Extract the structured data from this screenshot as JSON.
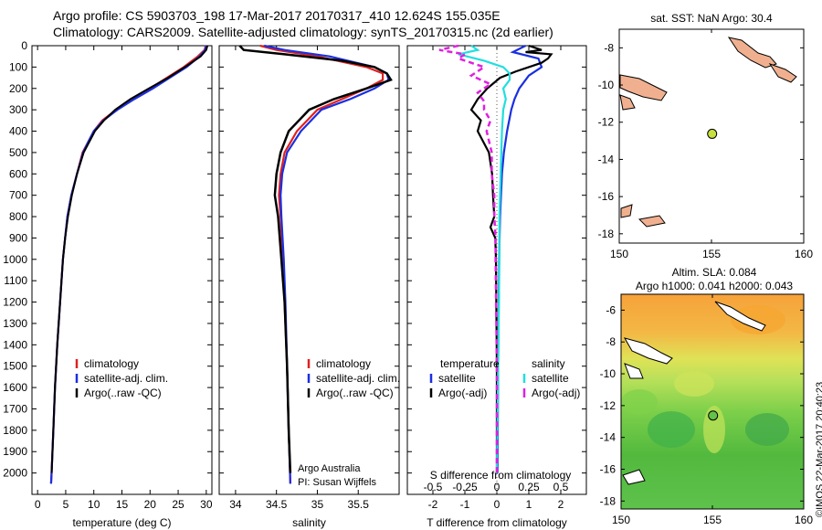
{
  "header": {
    "line1": "Argo profile: CS 5903703_198 17-Mar-2017 20170317_410 12.624S 155.035E",
    "line2": "Climatology: CARS2009. Satellite-adjusted climatology: synTS_20170315.nc (2d earlier)"
  },
  "side_text": "©IMOS 22-Mar-2017 20:40:23",
  "colors": {
    "climatology": "#e02020",
    "satellite": "#1a2fe0",
    "argo": "#000000",
    "sat_salinity": "#22dede",
    "argo_salinity": "#e020e0",
    "land": "#f0b090"
  },
  "chart_data": [
    {
      "type": "line",
      "xlabel": "temperature (deg C)",
      "ylabel": "",
      "xlim": [
        -1,
        31
      ],
      "ylim": [
        2100,
        0
      ],
      "xticks": [
        "0",
        "5",
        "10",
        "15",
        "20",
        "25",
        "30"
      ],
      "yticks": [
        "0",
        "100",
        "200",
        "300",
        "400",
        "500",
        "600",
        "700",
        "800",
        "900",
        "1000",
        "1100",
        "1200",
        "1300",
        "1400",
        "1500",
        "1600",
        "1700",
        "1800",
        "1900",
        "2000"
      ],
      "legend": [
        "climatology",
        "satellite-adj. clim.",
        "Argo(..raw -QC)"
      ],
      "series": [
        {
          "name": "climatology",
          "depth": [
            0,
            20,
            50,
            100,
            150,
            200,
            250,
            300,
            350,
            400,
            450,
            500,
            600,
            700,
            800,
            900,
            1000,
            1200,
            1400,
            1600,
            1800,
            2000,
            2050
          ],
          "values": [
            29.9,
            29.7,
            28.5,
            26.0,
            23.0,
            20.0,
            17.0,
            14.0,
            11.5,
            10.0,
            9.0,
            8.0,
            7.0,
            6.0,
            5.3,
            4.9,
            4.5,
            4.0,
            3.5,
            3.1,
            2.8,
            2.5,
            2.4
          ]
        },
        {
          "name": "satellite-adj. clim.",
          "depth": [
            0,
            20,
            50,
            100,
            150,
            200,
            250,
            300,
            350,
            400,
            450,
            500,
            600,
            700,
            800,
            900,
            1000,
            1200,
            1400,
            1600,
            1800,
            2000,
            2050
          ],
          "values": [
            30.0,
            29.8,
            28.8,
            26.5,
            23.5,
            20.5,
            17.2,
            14.2,
            11.7,
            10.0,
            9.0,
            8.1,
            7.0,
            6.0,
            5.3,
            4.9,
            4.5,
            4.0,
            3.5,
            3.1,
            2.8,
            2.5,
            2.4
          ]
        },
        {
          "name": "Argo(..raw -QC)",
          "depth": [
            0,
            20,
            50,
            100,
            150,
            200,
            250,
            300,
            350,
            400,
            450,
            500,
            600,
            700,
            800,
            900,
            1000,
            1200,
            1400,
            1600,
            1800,
            2000
          ],
          "values": [
            30.2,
            30.0,
            29.0,
            26.2,
            23.2,
            19.8,
            16.5,
            13.8,
            11.8,
            10.2,
            9.2,
            8.2,
            7.0,
            6.1,
            5.4,
            4.9,
            4.5,
            4.0,
            3.5,
            3.1,
            2.8,
            2.5
          ]
        }
      ]
    },
    {
      "type": "line",
      "xlabel": "salinity",
      "xlim": [
        33.8,
        36.0
      ],
      "ylim": [
        2100,
        0
      ],
      "xticks": [
        "34",
        "34.5",
        "35",
        "35.5"
      ],
      "legend": [
        "climatology",
        "satellite-adj. clim.",
        "Argo(..raw -QC)"
      ],
      "annotation": [
        "Argo Australia",
        "PI: Susan Wijffels"
      ],
      "series": [
        {
          "name": "climatology",
          "depth": [
            0,
            20,
            50,
            100,
            130,
            160,
            200,
            250,
            300,
            400,
            500,
            600,
            700,
            800,
            1000,
            1200,
            1500,
            1800,
            2050
          ],
          "values": [
            34.3,
            34.5,
            35.0,
            35.6,
            35.8,
            35.8,
            35.6,
            35.3,
            35.0,
            34.75,
            34.6,
            34.55,
            34.53,
            34.55,
            34.58,
            34.6,
            34.63,
            34.65,
            34.67
          ]
        },
        {
          "name": "satellite-adj. clim.",
          "depth": [
            0,
            20,
            50,
            100,
            130,
            160,
            200,
            250,
            300,
            400,
            500,
            600,
            700,
            800,
            1000,
            1200,
            1500,
            1800,
            2050
          ],
          "values": [
            34.35,
            34.6,
            35.15,
            35.7,
            35.85,
            35.87,
            35.7,
            35.4,
            35.05,
            34.8,
            34.63,
            34.57,
            34.55,
            34.56,
            34.59,
            34.61,
            34.63,
            34.65,
            34.67
          ]
        },
        {
          "name": "Argo(..raw -QC)",
          "depth": [
            0,
            20,
            40,
            70,
            100,
            130,
            160,
            200,
            250,
            300,
            400,
            500,
            600,
            700,
            800,
            1000,
            1200,
            1500,
            1800,
            2000
          ],
          "values": [
            34.05,
            34.1,
            34.6,
            35.3,
            35.7,
            35.85,
            35.9,
            35.6,
            35.2,
            34.9,
            34.65,
            34.55,
            34.5,
            34.48,
            34.52,
            34.56,
            34.6,
            34.63,
            34.65,
            34.67
          ]
        }
      ]
    },
    {
      "type": "line",
      "xlabel": "T difference from climatology",
      "xlabel_top": "S difference from climatology",
      "xlim": [
        -2.8,
        2.8
      ],
      "ylim": [
        2100,
        0
      ],
      "xticks": [
        "-2",
        "-1",
        "0",
        "1",
        "2"
      ],
      "xticks_top": [
        "-0.5",
        "-0.25",
        "0",
        "0.25",
        "0.5"
      ],
      "legend_left": [
        "temperature",
        "satellite",
        "Argo(-adj)"
      ],
      "legend_right": [
        "salinity",
        "satellite",
        "Argo(-adj)"
      ],
      "series": [
        {
          "name": "temperature satellite",
          "depth": [
            0,
            30,
            60,
            100,
            140,
            200,
            250,
            300,
            400,
            500,
            600,
            800,
            1000,
            1500,
            2000
          ],
          "values": [
            0.9,
            0.5,
            1.3,
            1.4,
            1.0,
            0.7,
            0.55,
            0.45,
            0.32,
            0.22,
            0.16,
            0.1,
            0.07,
            0.04,
            0.02
          ]
        },
        {
          "name": "temperature Argo(-adj)",
          "depth": [
            0,
            20,
            30,
            40,
            60,
            80,
            100,
            120,
            150,
            200,
            250,
            300,
            350,
            400,
            500,
            600,
            700,
            800,
            850,
            900,
            1000,
            1500,
            2000
          ],
          "values": [
            1.0,
            1.4,
            0.9,
            1.7,
            1.6,
            1.4,
            1.0,
            0.6,
            0.1,
            -0.3,
            -0.6,
            -0.8,
            -0.5,
            -0.6,
            -0.25,
            -0.15,
            -0.12,
            -0.08,
            -0.2,
            -0.05,
            -0.03,
            0.0,
            0.0
          ]
        },
        {
          "name": "salinity satellite",
          "depth": [
            0,
            20,
            40,
            70,
            100,
            130,
            160,
            200,
            250,
            300,
            400,
            600,
            800,
            1000,
            1500,
            2000
          ],
          "values": [
            -0.2,
            -0.15,
            -0.3,
            -0.1,
            0.05,
            0.1,
            0.1,
            0.05,
            0.07,
            0.05,
            0.04,
            0.03,
            0.02,
            0.02,
            0.01,
            0.0
          ]
        },
        {
          "name": "salinity Argo(-adj)",
          "depth": [
            0,
            20,
            40,
            60,
            100,
            140,
            180,
            220,
            260,
            300,
            350,
            400,
            500,
            600,
            700,
            800,
            900,
            1000,
            1500,
            2000
          ],
          "values": [
            -0.3,
            -0.45,
            -0.25,
            -0.3,
            -0.1,
            -0.2,
            -0.05,
            -0.15,
            -0.1,
            -0.1,
            -0.05,
            -0.08,
            -0.04,
            -0.04,
            -0.02,
            -0.02,
            -0.01,
            -0.01,
            0.0,
            0.0
          ]
        }
      ]
    },
    {
      "type": "map",
      "title": "sat. SST: NaN Argo: 30.4",
      "xlim": [
        150,
        160
      ],
      "ylim": [
        -18.5,
        -7
      ],
      "xticks": [
        "150",
        "155",
        "160"
      ],
      "yticks": [
        "-8",
        "-10",
        "-12",
        "-14",
        "-16",
        "-18"
      ],
      "argo_position": {
        "lon": 155.035,
        "lat": -12.624
      }
    },
    {
      "type": "heatmap",
      "title_line1": "Altim. SLA: 0.084",
      "title_line2": "Argo h1000: 0.041 h2000: 0.043",
      "xlim": [
        150,
        160
      ],
      "ylim": [
        -18.5,
        -5
      ],
      "xticks": [
        "150",
        "155",
        "160"
      ],
      "yticks": [
        "-6",
        "-8",
        "-10",
        "-12",
        "-14",
        "-16",
        "-18"
      ],
      "argo_position": {
        "lon": 155.035,
        "lat": -12.624
      }
    }
  ]
}
